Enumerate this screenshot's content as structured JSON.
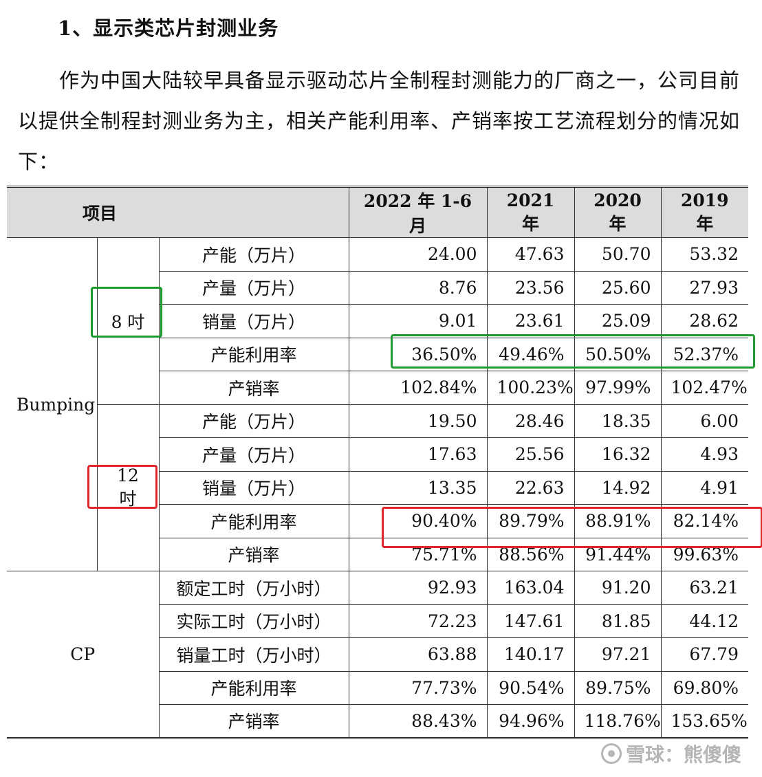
{
  "heading": "1、显示类芯片封测业务",
  "paragraph": "作为中国大陆较早具备显示驱动芯片全制程封测能力的厂商之一，公司目前以提供全制程封测业务为主，相关产能利用率、产销率按工艺流程划分的情况如下：",
  "table": {
    "header": {
      "item": "项目",
      "cols": [
        "2022 年 1-6 月",
        "2021 年",
        "2020 年",
        "2019 年"
      ]
    },
    "bumping_label": "Bumping",
    "cp_label": "CP",
    "sub8_label": "8 吋",
    "sub12_label": "12 吋",
    "bumping8": [
      {
        "label": "产能（万片）",
        "values": [
          "24.00",
          "47.63",
          "50.70",
          "53.32"
        ]
      },
      {
        "label": "产量（万片）",
        "values": [
          "8.76",
          "23.56",
          "25.60",
          "27.93"
        ]
      },
      {
        "label": "销量（万片）",
        "values": [
          "9.01",
          "23.61",
          "25.09",
          "28.62"
        ]
      },
      {
        "label": "产能利用率",
        "values": [
          "36.50%",
          "49.46%",
          "50.50%",
          "52.37%"
        ]
      },
      {
        "label": "产销率",
        "values": [
          "102.84%",
          "100.23%",
          "97.99%",
          "102.47%"
        ]
      }
    ],
    "bumping12": [
      {
        "label": "产能（万片）",
        "values": [
          "19.50",
          "28.46",
          "18.35",
          "6.00"
        ]
      },
      {
        "label": "产量（万片）",
        "values": [
          "17.63",
          "25.56",
          "16.32",
          "4.93"
        ]
      },
      {
        "label": "销量（万片）",
        "values": [
          "13.35",
          "22.63",
          "14.92",
          "4.91"
        ]
      },
      {
        "label": "产能利用率",
        "values": [
          "90.40%",
          "89.79%",
          "88.91%",
          "82.14%"
        ]
      },
      {
        "label": "产销率",
        "values": [
          "75.71%",
          "88.56%",
          "91.44%",
          "99.63%"
        ]
      }
    ],
    "cp": [
      {
        "label": "额定工时（万小时）",
        "values": [
          "92.93",
          "163.04",
          "91.20",
          "63.21"
        ]
      },
      {
        "label": "实际工时（万小时）",
        "values": [
          "72.23",
          "147.61",
          "81.85",
          "44.12"
        ]
      },
      {
        "label": "销量工时（万小时）",
        "values": [
          "63.88",
          "140.17",
          "97.21",
          "67.79"
        ]
      },
      {
        "label": "产能利用率",
        "values": [
          "77.73%",
          "90.54%",
          "89.75%",
          "69.80%"
        ]
      },
      {
        "label": "产销率",
        "values": [
          "88.43%",
          "94.96%",
          "118.76%",
          "153.65%"
        ]
      }
    ]
  },
  "watermark": "雪球：熊傻傻",
  "colors": {
    "highlight_green": "#1f9a2f",
    "highlight_red": "#e0262a",
    "header_bg": "#dcdcdc"
  }
}
